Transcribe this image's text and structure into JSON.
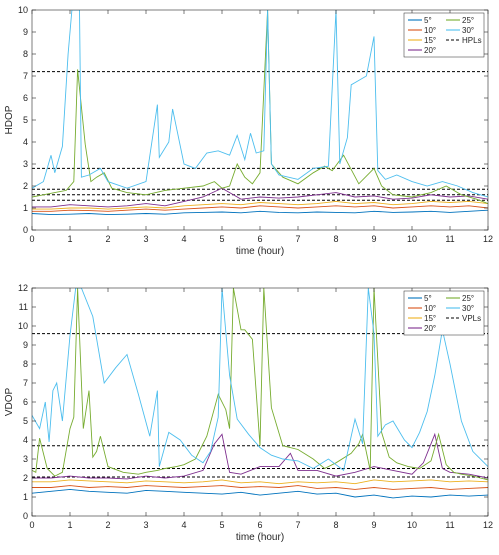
{
  "chart_data": [
    {
      "type": "line",
      "xlabel": "time (hour)",
      "ylabel": "HDOP",
      "xlim": [
        0,
        12
      ],
      "ylim": [
        0,
        10
      ],
      "xticks": [
        0,
        1,
        2,
        3,
        4,
        5,
        6,
        7,
        8,
        9,
        10,
        11,
        12
      ],
      "yticks": [
        0,
        1,
        2,
        3,
        4,
        5,
        6,
        7,
        8,
        9,
        10
      ],
      "legend_position": "top-right",
      "legend": [
        "5°",
        "10°",
        "15°",
        "20°",
        "25°",
        "30°",
        "HPLs"
      ],
      "series": [
        {
          "name": "5°",
          "color": "#0072BD",
          "x": [
            0,
            0.5,
            1,
            1.5,
            2,
            2.5,
            3,
            3.5,
            4,
            4.5,
            5,
            5.5,
            6,
            6.5,
            7,
            7.5,
            8,
            8.5,
            9,
            9.5,
            10,
            10.5,
            11,
            11.5,
            12
          ],
          "y": [
            0.75,
            0.7,
            0.72,
            0.75,
            0.7,
            0.72,
            0.75,
            0.72,
            0.78,
            0.8,
            0.82,
            0.78,
            0.85,
            0.8,
            0.78,
            0.82,
            0.8,
            0.78,
            0.85,
            0.8,
            0.82,
            0.85,
            0.8,
            0.85,
            0.9
          ]
        },
        {
          "name": "10°",
          "color": "#D95319",
          "x": [
            0,
            0.5,
            1,
            1.5,
            2,
            2.5,
            3,
            3.5,
            4,
            4.5,
            5,
            5.5,
            6,
            6.5,
            7,
            7.5,
            8,
            8.5,
            9,
            9.5,
            10,
            10.5,
            11,
            11.5,
            12
          ],
          "y": [
            0.85,
            0.85,
            0.9,
            0.88,
            0.85,
            0.9,
            0.95,
            0.9,
            0.95,
            1.0,
            1.05,
            1.0,
            1.1,
            1.05,
            1.0,
            1.05,
            1.1,
            1.05,
            1.1,
            1.0,
            1.05,
            1.1,
            1.05,
            1.1,
            1.0
          ]
        },
        {
          "name": "15°",
          "color": "#EDB120",
          "x": [
            0,
            0.5,
            1,
            1.5,
            2,
            2.5,
            3,
            3.5,
            4,
            4.5,
            5,
            5.5,
            6,
            6.5,
            7,
            7.5,
            8,
            8.5,
            9,
            9.5,
            10,
            10.5,
            11,
            11.5,
            12
          ],
          "y": [
            0.95,
            0.95,
            1.0,
            1.0,
            0.95,
            1.0,
            1.05,
            1.0,
            1.1,
            1.15,
            1.2,
            1.15,
            1.25,
            1.2,
            1.15,
            1.2,
            1.3,
            1.2,
            1.25,
            1.15,
            1.2,
            1.3,
            1.25,
            1.3,
            1.2
          ]
        },
        {
          "name": "20°",
          "color": "#7E2F8E",
          "x": [
            0,
            0.5,
            1,
            1.5,
            2,
            2.5,
            3,
            3.5,
            4,
            4.5,
            5,
            5.5,
            6,
            6.5,
            7,
            7.5,
            8,
            8.5,
            9,
            9.5,
            10,
            10.5,
            11,
            11.5,
            12
          ],
          "y": [
            1.05,
            1.05,
            1.15,
            1.1,
            1.05,
            1.1,
            1.2,
            1.1,
            1.3,
            1.5,
            1.9,
            1.4,
            1.5,
            1.45,
            1.5,
            1.6,
            1.7,
            1.5,
            1.55,
            1.4,
            1.45,
            1.6,
            1.5,
            1.55,
            1.4
          ]
        },
        {
          "name": "25°",
          "color": "#77AC30",
          "x": [
            0,
            0.3,
            0.6,
            0.9,
            1.1,
            1.2,
            1.4,
            1.55,
            1.7,
            1.9,
            2.1,
            2.5,
            3.0,
            3.5,
            4.0,
            4.5,
            4.8,
            5.0,
            5.2,
            5.4,
            5.6,
            5.8,
            6.0,
            6.2,
            6.3,
            6.6,
            7.0,
            7.4,
            7.7,
            7.9,
            8.2,
            8.6,
            9.0,
            9.2,
            9.5,
            10,
            10.5,
            10.9,
            11.3,
            11.7,
            12
          ],
          "y": [
            1.5,
            1.6,
            1.7,
            1.8,
            2.2,
            7.3,
            3.9,
            2.2,
            2.4,
            2.6,
            1.9,
            1.7,
            1.6,
            1.8,
            1.9,
            2.0,
            2.2,
            1.9,
            2.0,
            3.0,
            2.4,
            2.1,
            2.6,
            10,
            3.0,
            2.4,
            2.1,
            2.6,
            2.9,
            2.7,
            3.4,
            2.1,
            2.8,
            2.0,
            1.6,
            1.5,
            1.7,
            2.0,
            1.6,
            1.4,
            1.2
          ]
        },
        {
          "name": "30°",
          "color": "#4DBEEE",
          "x": [
            0,
            0.3,
            0.5,
            0.6,
            0.8,
            0.95,
            1.05,
            1.25,
            1.3,
            1.5,
            1.8,
            2.0,
            2.5,
            3.0,
            3.3,
            3.35,
            3.6,
            3.7,
            4.0,
            4.3,
            4.6,
            4.9,
            5.2,
            5.4,
            5.6,
            5.75,
            5.9,
            6.1,
            6.2,
            6.3,
            6.5,
            7.0,
            7.4,
            7.8,
            8.0,
            8.1,
            8.3,
            8.4,
            8.5,
            8.8,
            9.0,
            9.1,
            9.3,
            9.6,
            10.0,
            10.4,
            10.8,
            11.2,
            11.6,
            12
          ],
          "y": [
            1.9,
            2.2,
            3.4,
            2.6,
            3.8,
            8.0,
            10,
            10,
            2.4,
            2.5,
            2.8,
            2.2,
            1.9,
            2.2,
            5.7,
            3.3,
            4.0,
            5.5,
            3.0,
            2.8,
            3.5,
            3.6,
            3.4,
            4.3,
            3.2,
            4.4,
            3.5,
            3.6,
            10,
            3.0,
            2.5,
            2.3,
            2.8,
            2.9,
            10,
            3.0,
            4.2,
            6.6,
            6.7,
            7.0,
            8.8,
            2.7,
            2.3,
            2.5,
            2.2,
            2.0,
            2.2,
            2.0,
            1.7,
            1.5
          ]
        }
      ],
      "reference_lines": {
        "name": "HPLs",
        "style": "dashed",
        "color": "#000000",
        "y": [
          7.2,
          2.8,
          1.85,
          1.6,
          1.35
        ]
      }
    },
    {
      "type": "line",
      "xlabel": "time (hour)",
      "ylabel": "VDOP",
      "xlim": [
        0,
        12
      ],
      "ylim": [
        0,
        12
      ],
      "xticks": [
        0,
        1,
        2,
        3,
        4,
        5,
        6,
        7,
        8,
        9,
        10,
        11,
        12
      ],
      "yticks": [
        0,
        1,
        2,
        3,
        4,
        5,
        6,
        7,
        8,
        9,
        10,
        11,
        12
      ],
      "legend_position": "top-right",
      "legend": [
        "5°",
        "10°",
        "15°",
        "20°",
        "25°",
        "30°",
        "VPLs"
      ],
      "series": [
        {
          "name": "5°",
          "color": "#0072BD",
          "x": [
            0,
            0.5,
            1,
            1.5,
            2,
            2.5,
            3,
            3.5,
            4,
            4.5,
            5,
            5.5,
            6,
            6.5,
            7,
            7.5,
            8,
            8.5,
            9,
            9.5,
            10,
            10.5,
            11,
            11.5,
            12
          ],
          "y": [
            1.2,
            1.3,
            1.4,
            1.3,
            1.25,
            1.2,
            1.35,
            1.3,
            1.25,
            1.2,
            1.15,
            1.25,
            1.1,
            1.2,
            1.3,
            1.15,
            1.2,
            1.0,
            1.1,
            0.95,
            1.05,
            1.0,
            1.1,
            1.05,
            1.1
          ]
        },
        {
          "name": "10°",
          "color": "#D95319",
          "x": [
            0,
            0.5,
            1,
            1.5,
            2,
            2.5,
            3,
            3.5,
            4,
            4.5,
            5,
            5.5,
            6,
            6.5,
            7,
            7.5,
            8,
            8.5,
            9,
            9.5,
            10,
            10.5,
            11,
            11.5,
            12
          ],
          "y": [
            1.5,
            1.5,
            1.6,
            1.5,
            1.55,
            1.5,
            1.6,
            1.55,
            1.5,
            1.55,
            1.6,
            1.5,
            1.55,
            1.5,
            1.6,
            1.45,
            1.5,
            1.4,
            1.5,
            1.4,
            1.45,
            1.5,
            1.4,
            1.45,
            1.5
          ]
        },
        {
          "name": "15°",
          "color": "#EDB120",
          "x": [
            0,
            0.5,
            1,
            1.5,
            2,
            2.5,
            3,
            3.5,
            4,
            4.5,
            5,
            5.5,
            6,
            6.5,
            7,
            7.5,
            8,
            8.5,
            9,
            9.5,
            10,
            10.5,
            11,
            11.5,
            12
          ],
          "y": [
            1.8,
            1.8,
            1.9,
            1.85,
            1.8,
            1.75,
            1.85,
            1.8,
            1.75,
            1.8,
            1.9,
            1.75,
            1.8,
            1.7,
            1.8,
            1.75,
            1.8,
            1.7,
            1.9,
            1.8,
            1.85,
            1.9,
            1.8,
            1.85,
            1.8
          ]
        },
        {
          "name": "20°",
          "color": "#7E2F8E",
          "x": [
            0,
            0.5,
            1,
            1.5,
            2,
            2.5,
            3,
            3.5,
            4,
            4.5,
            4.8,
            5.0,
            5.2,
            5.5,
            6.0,
            6.5,
            6.8,
            7.0,
            7.5,
            8.0,
            8.5,
            9.0,
            9.5,
            10.0,
            10.3,
            10.6,
            10.8,
            11.0,
            11.5,
            12
          ],
          "y": [
            2.0,
            2.0,
            2.1,
            2.0,
            2.0,
            1.95,
            2.1,
            2.0,
            2.1,
            2.4,
            3.8,
            4.3,
            2.3,
            2.2,
            2.6,
            2.6,
            3.3,
            2.4,
            2.4,
            2.1,
            2.3,
            2.6,
            2.4,
            2.2,
            2.8,
            4.3,
            2.5,
            2.3,
            2.2,
            2.0
          ]
        },
        {
          "name": "25°",
          "color": "#77AC30",
          "x": [
            0,
            0.1,
            0.2,
            0.4,
            0.6,
            0.8,
            1.0,
            1.1,
            1.2,
            1.35,
            1.5,
            1.6,
            1.7,
            1.8,
            2.0,
            2.4,
            2.8,
            3.0,
            3.3,
            3.5,
            3.8,
            4.0,
            4.3,
            4.6,
            4.9,
            5.1,
            5.2,
            5.3,
            5.5,
            5.6,
            5.8,
            6.0,
            6.1,
            6.3,
            6.6,
            7.0,
            7.4,
            7.7,
            8.0,
            8.4,
            8.6,
            8.7,
            8.9,
            9.0,
            9.2,
            9.4,
            9.6,
            9.9,
            10.2,
            10.5,
            10.7,
            10.9,
            11.1,
            11.3,
            11.6,
            11.8,
            12
          ],
          "y": [
            2.4,
            2.3,
            4.1,
            2.5,
            2.1,
            2.3,
            4.6,
            5.2,
            12,
            4.6,
            6.6,
            3.1,
            3.4,
            4.2,
            2.6,
            2.3,
            2.2,
            2.3,
            2.4,
            2.5,
            2.6,
            2.7,
            3.0,
            4.2,
            6.4,
            5.6,
            4.6,
            12,
            9.8,
            9.8,
            9.3,
            3.7,
            12,
            5.7,
            3.7,
            3.5,
            3.0,
            2.5,
            2.8,
            3.3,
            3.8,
            4.3,
            2.4,
            12,
            4.4,
            3.1,
            2.8,
            2.6,
            2.5,
            2.9,
            4.3,
            2.7,
            2.3,
            2.2,
            2.1,
            2.0,
            1.9
          ]
        },
        {
          "name": "30°",
          "color": "#4DBEEE",
          "x": [
            0,
            0.2,
            0.35,
            0.45,
            0.55,
            0.65,
            0.8,
            1.0,
            1.15,
            1.3,
            1.6,
            1.9,
            2.2,
            2.5,
            2.8,
            3.1,
            3.3,
            3.35,
            3.6,
            3.9,
            4.2,
            4.5,
            4.7,
            4.9,
            5.0,
            5.2,
            5.4,
            5.7,
            6.0,
            6.3,
            6.6,
            7.0,
            7.4,
            7.8,
            8.2,
            8.5,
            8.7,
            8.85,
            9.0,
            9.1,
            9.3,
            9.5,
            9.8,
            10.0,
            10.2,
            10.4,
            10.6,
            10.8,
            11.0,
            11.3,
            11.6,
            11.9,
            12
          ],
          "y": [
            5.3,
            4.6,
            6.0,
            3.9,
            6.6,
            7.0,
            5.0,
            9.5,
            12,
            12,
            10.5,
            7.0,
            7.8,
            8.5,
            6.4,
            4.2,
            6.6,
            2.6,
            4.4,
            4.0,
            3.2,
            2.8,
            3.4,
            5.2,
            12,
            7.4,
            5.1,
            4.3,
            3.6,
            3.2,
            3.0,
            2.9,
            2.5,
            3.0,
            2.4,
            5.1,
            3.8,
            12,
            9.6,
            4.2,
            4.8,
            5.0,
            4.0,
            3.6,
            4.4,
            5.5,
            7.4,
            9.8,
            8.0,
            5.0,
            3.4,
            2.8,
            2.6
          ]
        }
      ],
      "reference_lines": {
        "name": "VPLs",
        "style": "dashed",
        "color": "#000000",
        "y": [
          9.6,
          3.7,
          2.5,
          2.05
        ]
      }
    }
  ]
}
